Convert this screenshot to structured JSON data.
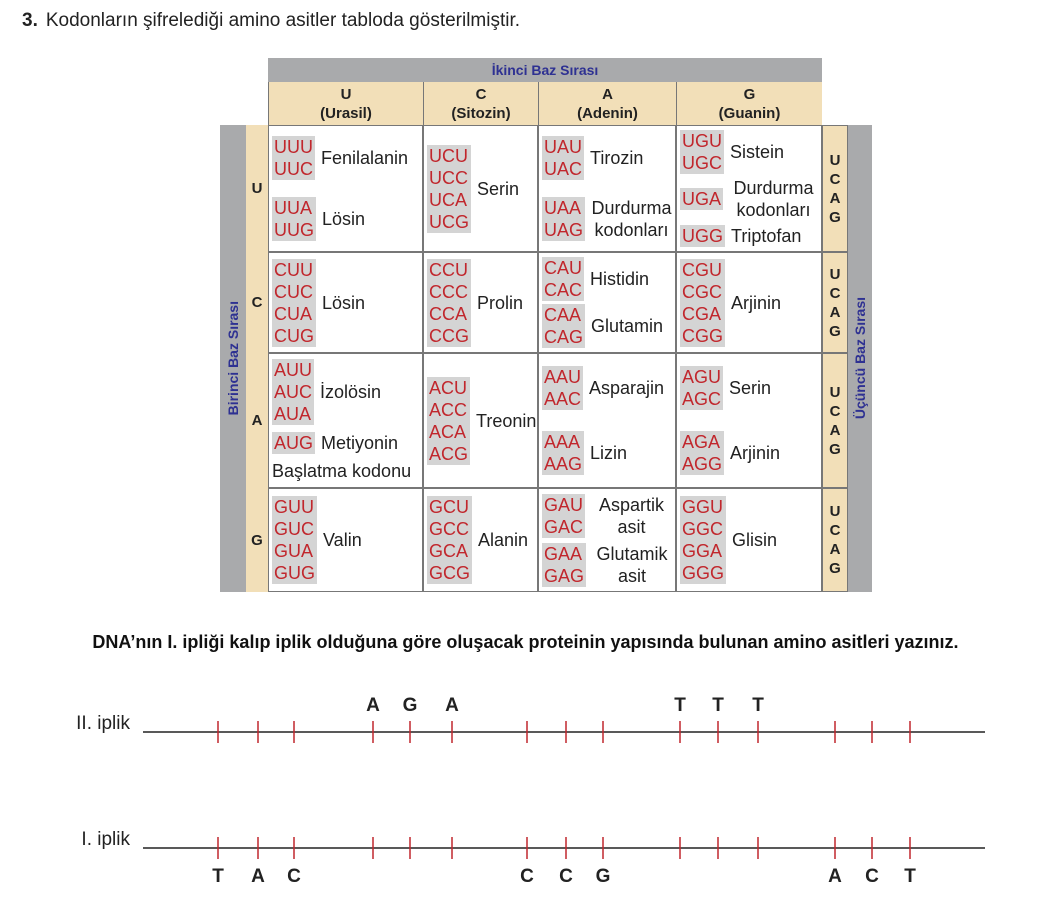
{
  "question": {
    "number": "3.",
    "text": "Kodonların şifrelediği amino asitler tabloda gösterilmiştir."
  },
  "table": {
    "header": "İkinci Baz Sırası",
    "left_label": "Birinci Baz Sırası",
    "right_label": "Üçüncü Baz Sırası",
    "columns": [
      {
        "letter": "U",
        "name": "(Urasil)"
      },
      {
        "letter": "C",
        "name": "(Sitozin)"
      },
      {
        "letter": "A",
        "name": "(Adenin)"
      },
      {
        "letter": "G",
        "name": "(Guanin)"
      }
    ],
    "rows": [
      {
        "letter": "U",
        "third": [
          "U",
          "C",
          "A",
          "G"
        ],
        "cells": [
          {
            "groups": [
              {
                "codons": [
                  "UUU",
                  "UUC"
                ],
                "amino": "Fenilalanin"
              },
              {
                "codons": [
                  "UUA",
                  "UUG"
                ],
                "amino": "Lösin"
              }
            ]
          },
          {
            "groups": [
              {
                "codons": [
                  "UCU",
                  "UCC",
                  "UCA",
                  "UCG"
                ],
                "amino": "Serin"
              }
            ]
          },
          {
            "groups": [
              {
                "codons": [
                  "UAU",
                  "UAC"
                ],
                "amino": "Tirozin"
              },
              {
                "codons": [
                  "UAA",
                  "UAG"
                ],
                "amino": "Durdurma kodonları"
              }
            ]
          },
          {
            "groups": [
              {
                "codons": [
                  "UGU",
                  "UGC"
                ],
                "amino": "Sistein"
              },
              {
                "codons": [
                  "UGA"
                ],
                "amino": "Durdurma kodonları"
              },
              {
                "codons": [
                  "UGG"
                ],
                "amino": "Triptofan"
              }
            ]
          }
        ]
      },
      {
        "letter": "C",
        "third": [
          "U",
          "C",
          "A",
          "G"
        ],
        "cells": [
          {
            "groups": [
              {
                "codons": [
                  "CUU",
                  "CUC",
                  "CUA",
                  "CUG"
                ],
                "amino": "Lösin"
              }
            ]
          },
          {
            "groups": [
              {
                "codons": [
                  "CCU",
                  "CCC",
                  "CCA",
                  "CCG"
                ],
                "amino": "Prolin"
              }
            ]
          },
          {
            "groups": [
              {
                "codons": [
                  "CAU",
                  "CAC"
                ],
                "amino": "Histidin"
              },
              {
                "codons": [
                  "CAA",
                  "CAG"
                ],
                "amino": "Glutamin"
              }
            ]
          },
          {
            "groups": [
              {
                "codons": [
                  "CGU",
                  "CGC",
                  "CGA",
                  "CGG"
                ],
                "amino": "Arjinin"
              }
            ]
          }
        ]
      },
      {
        "letter": "A",
        "third": [
          "U",
          "C",
          "A",
          "G"
        ],
        "cells": [
          {
            "groups": [
              {
                "codons": [
                  "AUU",
                  "AUC",
                  "AUA"
                ],
                "amino": "İzolösin"
              },
              {
                "codons": [
                  "AUG"
                ],
                "amino": "Metiyonin"
              }
            ],
            "note": "Başlatma kodonu"
          },
          {
            "groups": [
              {
                "codons": [
                  "ACU",
                  "ACC",
                  "ACA",
                  "ACG"
                ],
                "amino": "Treonin"
              }
            ]
          },
          {
            "groups": [
              {
                "codons": [
                  "AAU",
                  "AAC"
                ],
                "amino": "Asparajin"
              },
              {
                "codons": [
                  "AAA",
                  "AAG"
                ],
                "amino": "Lizin"
              }
            ]
          },
          {
            "groups": [
              {
                "codons": [
                  "AGU",
                  "AGC"
                ],
                "amino": "Serin"
              },
              {
                "codons": [
                  "AGA",
                  "AGG"
                ],
                "amino": "Arjinin"
              }
            ]
          }
        ]
      },
      {
        "letter": "G",
        "third": [
          "U",
          "C",
          "A",
          "G"
        ],
        "cells": [
          {
            "groups": [
              {
                "codons": [
                  "GUU",
                  "GUC",
                  "GUA",
                  "GUG"
                ],
                "amino": "Valin"
              }
            ]
          },
          {
            "groups": [
              {
                "codons": [
                  "GCU",
                  "GCC",
                  "GCA",
                  "GCG"
                ],
                "amino": "Alanin"
              }
            ]
          },
          {
            "groups": [
              {
                "codons": [
                  "GAU",
                  "GAC"
                ],
                "amino": "Aspartik asit"
              },
              {
                "codons": [
                  "GAA",
                  "GAG"
                ],
                "amino": "Glutamik asit"
              }
            ]
          },
          {
            "groups": [
              {
                "codons": [
                  "GGU",
                  "GGC",
                  "GGA",
                  "GGG"
                ],
                "amino": "Glisin"
              }
            ]
          }
        ]
      }
    ]
  },
  "instruction": "DNA’nın I. ipliği kalıp iplik olduğuna göre oluşacak proteinin yapısında bulunan amino asitleri yazınız.",
  "strands": [
    {
      "label": "II. iplik",
      "bases": [
        null,
        null,
        null,
        "A",
        "G",
        "A",
        null,
        null,
        null,
        "T",
        "T",
        "T",
        null,
        null,
        null
      ]
    },
    {
      "label": "I. iplik",
      "bases": [
        "T",
        "A",
        "C",
        null,
        null,
        null,
        "C",
        "C",
        "G",
        null,
        null,
        null,
        "A",
        "C",
        "T"
      ]
    }
  ]
}
